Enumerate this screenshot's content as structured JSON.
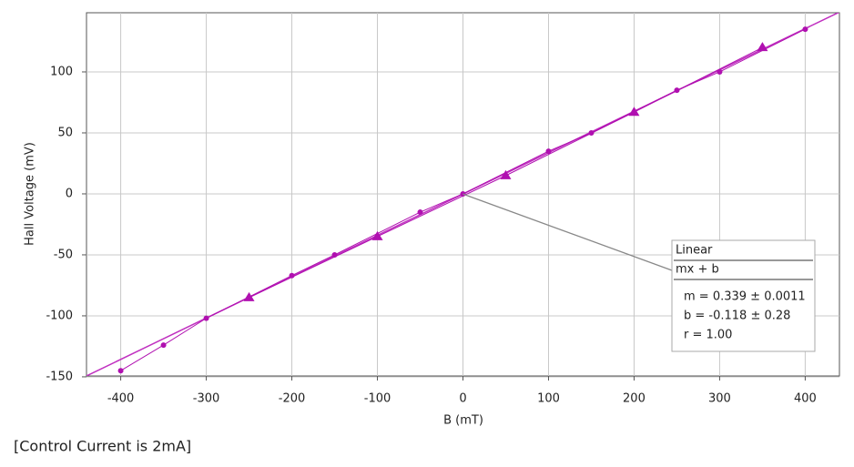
{
  "chart_data": {
    "type": "line",
    "x_label": "B (mT)",
    "y_label": "Hall Voltage (mV)",
    "xlim": [
      -440,
      440
    ],
    "ylim": [
      -149.3,
      148.5
    ],
    "xticks": [
      -400,
      -300,
      -200,
      -100,
      0,
      100,
      200,
      300,
      400
    ],
    "yticks": [
      -150,
      -100,
      -50,
      0,
      50,
      100
    ],
    "grid": true,
    "series": [
      {
        "marker": "circle",
        "color": "#b010b0",
        "x": [
          -400,
          -350,
          -300,
          -200,
          -150,
          -50,
          0,
          100,
          150,
          250,
          300,
          400
        ],
        "values": [
          -145,
          -124,
          -102,
          -67,
          -50,
          -15,
          0,
          35,
          50,
          85,
          100,
          135
        ]
      },
      {
        "marker": "triangle",
        "color": "#b010b0",
        "x": [
          -250,
          -100,
          50,
          200,
          350
        ],
        "values": [
          -85,
          -35,
          15,
          67,
          120
        ]
      }
    ],
    "fit": {
      "color": "#c030c0",
      "title": "Linear",
      "equation": "mx + b",
      "m": {
        "value": 0.339,
        "label": "m = 0.339  ± 0.0011"
      },
      "b": {
        "value": -0.118,
        "label": "b = -0.118  ± 0.28"
      },
      "r": "r = 1.00"
    },
    "footnote": "[Control Current is 2mA]"
  }
}
